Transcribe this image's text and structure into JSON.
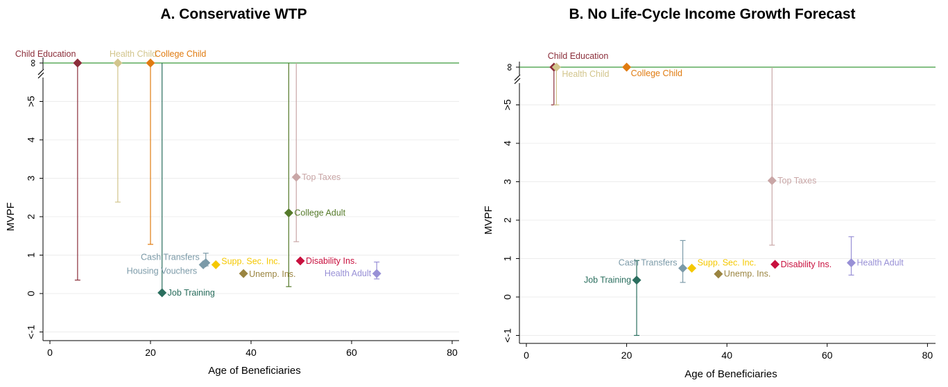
{
  "chart_data": [
    {
      "type": "scatter",
      "title": "A. Conservative WTP",
      "xlabel": "Age of Beneficiaries",
      "ylabel": "MVPF",
      "xlim": [
        0,
        80
      ],
      "ylim": [
        -1,
        5
      ],
      "x_ticks": [
        "0",
        "20",
        "40",
        "60",
        "80"
      ],
      "y_ticks": [
        "<-1",
        "0",
        "1",
        "2",
        "3",
        "4",
        ">5"
      ],
      "infinity_label": "∞",
      "grid": true,
      "series": [
        {
          "name": "Child Education",
          "x": 5.5,
          "y": "inf",
          "ci": [
            0.35,
            "inf"
          ],
          "color": "#8b2e3a"
        },
        {
          "name": "Health Child",
          "x": 13.5,
          "y": "inf",
          "ci": [
            2.38,
            "inf"
          ],
          "color": "#d2c58c"
        },
        {
          "name": "College Child",
          "x": 20,
          "y": "inf",
          "ci": [
            1.28,
            "inf"
          ],
          "color": "#e07b10"
        },
        {
          "name": "Job Training",
          "x": 22.3,
          "y": 0.02,
          "ci": [
            0.02,
            "inf"
          ],
          "color": "#2a6e5e"
        },
        {
          "name": "Cash Transfers",
          "x": 31,
          "y": 0.8,
          "ci": [
            0.72,
            1.05
          ],
          "color": "#7b9aa8"
        },
        {
          "name": "Housing Vouchers",
          "x": 30.5,
          "y": 0.75,
          "ci": null,
          "color": "#7b9aa8"
        },
        {
          "name": "Supp. Sec. Inc.",
          "x": 33,
          "y": 0.75,
          "ci": null,
          "color": "#f5c800"
        },
        {
          "name": "Unemp. Ins.",
          "x": 38.5,
          "y": 0.52,
          "ci": null,
          "color": "#9a8440"
        },
        {
          "name": "College Adult",
          "x": 47.5,
          "y": 2.1,
          "ci": [
            0.18,
            "inf"
          ],
          "color": "#557a2a"
        },
        {
          "name": "Top Taxes",
          "x": 49,
          "y": 3.03,
          "ci": [
            1.35,
            "inf"
          ],
          "color": "#c9a6a6"
        },
        {
          "name": "Disability Ins.",
          "x": 49.8,
          "y": 0.85,
          "ci": null,
          "color": "#c8103e"
        },
        {
          "name": "Health Adult",
          "x": 65,
          "y": 0.52,
          "ci": [
            0.38,
            0.82
          ],
          "color": "#9890d6"
        }
      ]
    },
    {
      "type": "scatter",
      "title": "B. No Life-Cycle Income Growth Forecast",
      "xlabel": "Age of Beneficiaries",
      "ylabel": "MVPF",
      "xlim": [
        0,
        80
      ],
      "ylim": [
        -1,
        5
      ],
      "x_ticks": [
        "0",
        "20",
        "40",
        "60",
        "80"
      ],
      "y_ticks": [
        "<-1",
        "0",
        "1",
        "2",
        "3",
        "4",
        ">5"
      ],
      "infinity_label": "∞",
      "grid": true,
      "series": [
        {
          "name": "Child Education",
          "x": 5.5,
          "y": "inf",
          "ci": [
            5,
            "inf"
          ],
          "color": "#8b2e3a"
        },
        {
          "name": "Health Child",
          "x": 6,
          "y": "inf",
          "ci": [
            5,
            "inf"
          ],
          "color": "#d2c58c"
        },
        {
          "name": "College Child",
          "x": 20,
          "y": "inf",
          "ci": null,
          "color": "#e07b10"
        },
        {
          "name": "Job Training",
          "x": 22,
          "y": 0.44,
          "ci": [
            -1,
            0.95
          ],
          "color": "#2a6e5e"
        },
        {
          "name": "Cash Transfers",
          "x": 31.2,
          "y": 0.75,
          "ci": [
            0.38,
            1.47
          ],
          "color": "#7b9aa8"
        },
        {
          "name": "Supp. Sec. Inc.",
          "x": 33,
          "y": 0.75,
          "ci": null,
          "color": "#f5c800"
        },
        {
          "name": "Unemp. Ins.",
          "x": 38.3,
          "y": 0.6,
          "ci": null,
          "color": "#9a8440"
        },
        {
          "name": "Top Taxes",
          "x": 49,
          "y": 3.03,
          "ci": [
            1.35,
            "inf"
          ],
          "color": "#c9a6a6"
        },
        {
          "name": "Disability Ins.",
          "x": 49.6,
          "y": 0.85,
          "ci": null,
          "color": "#c8103e"
        },
        {
          "name": "Health Adult",
          "x": 64.8,
          "y": 0.89,
          "ci": [
            0.57,
            1.57
          ],
          "color": "#9890d6"
        }
      ]
    }
  ]
}
